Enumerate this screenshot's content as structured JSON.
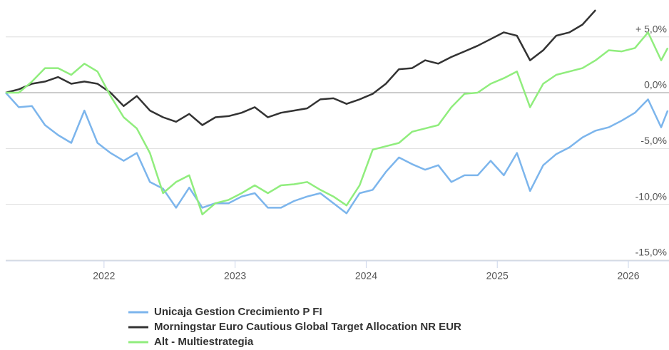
{
  "chart_data": {
    "type": "line",
    "x": [
      2021.25,
      2021.35,
      2021.45,
      2021.55,
      2021.65,
      2021.75,
      2021.85,
      2021.95,
      2022.05,
      2022.15,
      2022.25,
      2022.35,
      2022.45,
      2022.55,
      2022.65,
      2022.75,
      2022.85,
      2022.95,
      2023.05,
      2023.15,
      2023.25,
      2023.35,
      2023.45,
      2023.55,
      2023.65,
      2023.75,
      2023.85,
      2023.95,
      2024.05,
      2024.15,
      2024.25,
      2024.35,
      2024.45,
      2024.55,
      2024.65,
      2024.75,
      2024.85,
      2024.95,
      2025.05,
      2025.15,
      2025.25,
      2025.35,
      2025.45,
      2025.55,
      2025.65,
      2025.75,
      2025.85,
      2025.95,
      2026.05,
      2026.15,
      2026.25,
      2026.3
    ],
    "series": [
      {
        "name": "Unicaja Gestion Crecimiento P FI",
        "color": "#7cb5ec",
        "values": [
          0,
          -1.3,
          -1.2,
          -2.9,
          -3.8,
          -4.5,
          -1.6,
          -4.5,
          -5.4,
          -6.1,
          -5.4,
          -8.0,
          -8.6,
          -10.3,
          -8.5,
          -10.3,
          -9.9,
          -9.9,
          -9.3,
          -9.0,
          -10.3,
          -10.3,
          -9.7,
          -9.3,
          -9.0,
          -9.9,
          -10.8,
          -9.0,
          -8.7,
          -7.1,
          -5.8,
          -6.4,
          -6.9,
          -6.5,
          -8.0,
          -7.4,
          -7.4,
          -6.1,
          -7.4,
          -5.4,
          -8.8,
          -6.5,
          -5.5,
          -4.9,
          -4.0,
          -3.4,
          -3.1,
          -2.5,
          -1.8,
          -0.6,
          -3.1,
          -1.6
        ]
      },
      {
        "name": "Morningstar Euro Cautious Global Target Allocation NR EUR",
        "color": "#333333",
        "values": [
          0,
          0.3,
          0.8,
          1.0,
          1.4,
          0.8,
          1.0,
          0.8,
          0,
          -1.2,
          -0.3,
          -1.6,
          -2.2,
          -2.6,
          -1.9,
          -2.9,
          -2.2,
          -2.1,
          -1.8,
          -1.3,
          -2.2,
          -1.8,
          -1.6,
          -1.4,
          -0.6,
          -0.5,
          -1.0,
          -0.6,
          -0.1,
          0.8,
          2.1,
          2.2,
          2.9,
          2.6,
          3.2,
          3.7,
          4.2,
          4.8,
          5.4,
          5.1,
          2.9,
          3.8,
          5.1,
          5.4,
          6.1,
          7.4,
          null,
          null,
          null,
          null,
          null,
          null
        ]
      },
      {
        "name": "Alt - Multiestrategia",
        "color": "#90ed7d",
        "values": [
          0,
          0,
          1.0,
          2.2,
          2.2,
          1.6,
          2.6,
          1.9,
          -0.3,
          -2.2,
          -3.2,
          -5.4,
          -9.0,
          -8.0,
          -7.4,
          -10.9,
          -9.9,
          -9.6,
          -9.0,
          -8.3,
          -9.0,
          -8.3,
          -8.2,
          -8.0,
          -8.7,
          -9.3,
          -10.1,
          -8.3,
          -5.1,
          -4.8,
          -4.5,
          -3.5,
          -3.2,
          -2.9,
          -1.3,
          -0.1,
          0,
          0.8,
          1.3,
          1.9,
          -1.3,
          0.8,
          1.6,
          1.9,
          2.2,
          2.9,
          3.8,
          3.7,
          4.0,
          5.4,
          2.9,
          4.0
        ]
      }
    ],
    "xlim": [
      2021.25,
      2026.31
    ],
    "xticks": [
      2022,
      2023,
      2024,
      2025,
      2026
    ],
    "ylim": [
      -15,
      8.3
    ],
    "yticks": [
      {
        "value": -15,
        "label": "-15,0%"
      },
      {
        "value": -10,
        "label": "-10,0%"
      },
      {
        "value": -5,
        "label": "-5,0%"
      },
      {
        "value": 0,
        "label": "0,0%"
      },
      {
        "value": 5,
        "label": "+ 5,0%"
      }
    ],
    "grid": true
  }
}
